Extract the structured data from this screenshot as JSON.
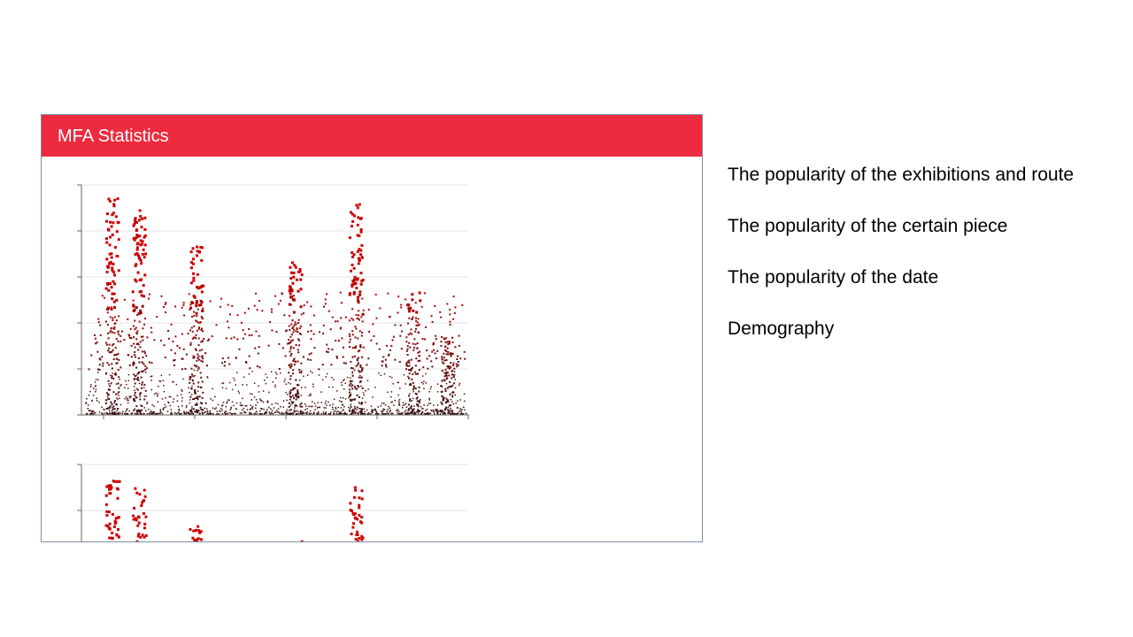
{
  "panel": {
    "title": "MFA Statistics",
    "header_color": "#ee2a3e"
  },
  "topics": [
    "The popularity of the exhibitions and route",
    "The popularity of the certain piece",
    "The popularity of the date",
    "Demography"
  ],
  "chart_data": [
    {
      "type": "scatter",
      "title": "",
      "xlabel": "",
      "ylabel": "",
      "grid": true,
      "tick_labels_visible": false,
      "colors": {
        "high": "#cc0000",
        "low": "#3a1010"
      },
      "clusters": [
        {
          "x": 0.07,
          "y_max": 0.98
        },
        {
          "x": 0.14,
          "y_max": 0.93
        },
        {
          "x": 0.29,
          "y_max": 0.76
        },
        {
          "x": 0.55,
          "y_max": 0.69
        },
        {
          "x": 0.71,
          "y_max": 0.95
        },
        {
          "x": 0.86,
          "y_max": 0.56
        },
        {
          "x": 0.95,
          "y_max": 0.35
        }
      ]
    },
    {
      "type": "scatter",
      "title": "",
      "grid": true,
      "tick_labels_visible": false,
      "partially_visible": true,
      "colors": {
        "high": "#cc0000",
        "low": "#3a1010"
      }
    }
  ]
}
